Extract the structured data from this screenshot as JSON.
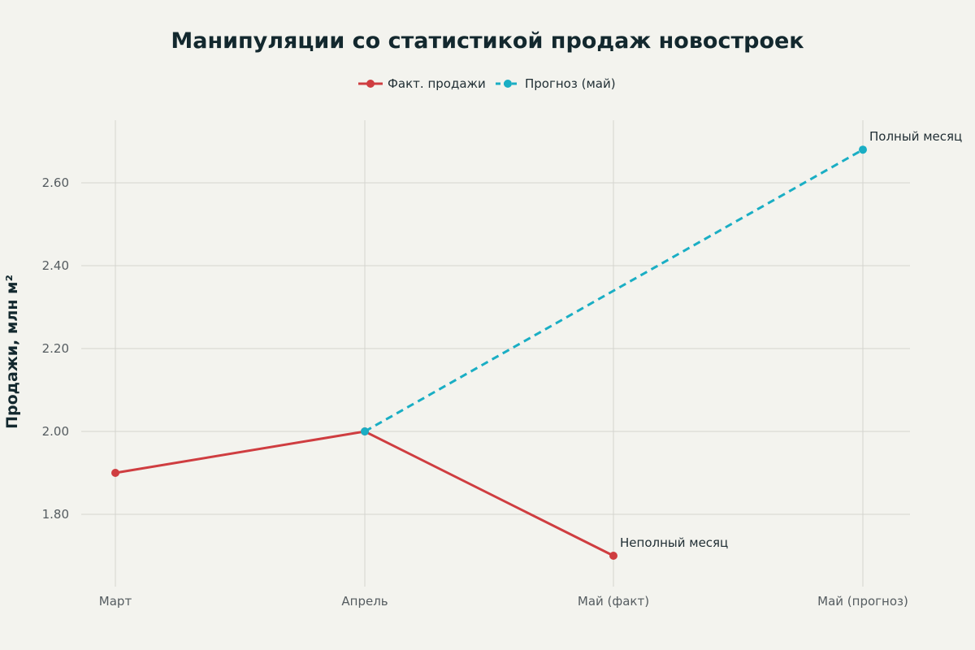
{
  "chart_data": {
    "type": "line",
    "title": "Манипуляции со статистикой продаж новостроек",
    "ylabel": "Продажи, млн м²",
    "xlabel": "",
    "categories": [
      "Март",
      "Апрель",
      "Май (факт)",
      "Май (прогноз)"
    ],
    "ylim": [
      1.65,
      2.75
    ],
    "yticks": [
      1.8,
      2.0,
      2.2,
      2.4,
      2.6
    ],
    "ytick_labels": [
      "1.80",
      "2.00",
      "2.20",
      "2.40",
      "2.60"
    ],
    "grid": true,
    "legend_position": "top-center",
    "series": [
      {
        "name": "Факт. продажи",
        "color": "#cf3d40",
        "style": "solid",
        "points": [
          {
            "category": "Март",
            "value": 1.9
          },
          {
            "category": "Апрель",
            "value": 2.0
          },
          {
            "category": "Май (факт)",
            "value": 1.7
          }
        ]
      },
      {
        "name": "Прогноз (май)",
        "color": "#1aaec4",
        "style": "dashed",
        "points": [
          {
            "category": "Апрель",
            "value": 2.0
          },
          {
            "category": "Май (прогноз)",
            "value": 2.68
          }
        ]
      }
    ],
    "annotations": [
      {
        "text": "Неполный месяц",
        "category": "Май (факт)",
        "value": 1.7
      },
      {
        "text": "Полный месяц",
        "category": "Май (прогноз)",
        "value": 2.68
      }
    ]
  }
}
